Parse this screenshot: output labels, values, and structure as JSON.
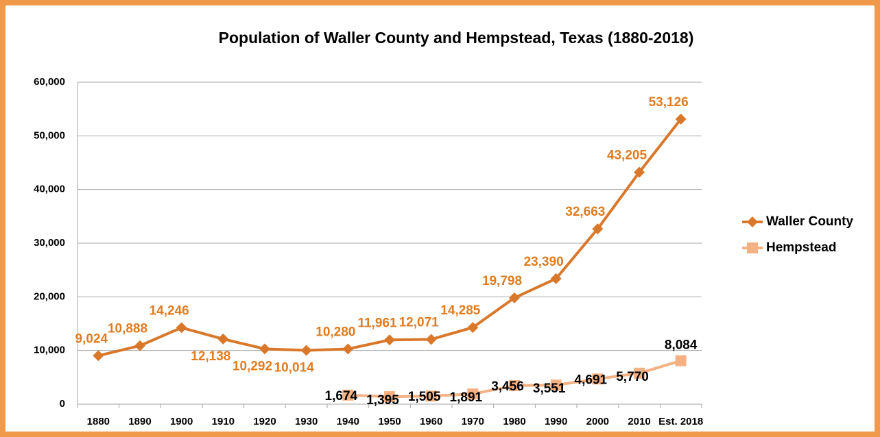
{
  "chart_data": {
    "type": "line",
    "title": "Population of Waller County and Hempstead, Texas (1880-2018)",
    "categories": [
      "1880",
      "1890",
      "1900",
      "1910",
      "1920",
      "1930",
      "1940",
      "1950",
      "1960",
      "1970",
      "1980",
      "1990",
      "2000",
      "2010",
      "Est. 2018"
    ],
    "series": [
      {
        "name": "Waller County",
        "color": "#d9782b",
        "label_color": "#e07b20",
        "marker": "diamond",
        "values": [
          9024,
          10888,
          14246,
          12138,
          10292,
          10014,
          10280,
          11961,
          12071,
          14285,
          19798,
          23390,
          32663,
          43205,
          53126
        ],
        "value_labels": [
          "9,024",
          "10,888",
          "14,246",
          "12,138",
          "10,292",
          "10,014",
          "10,280",
          "11,961",
          "12,071",
          "14,285",
          "19,798",
          "23,390",
          "32,663",
          "43,205",
          "53,126"
        ]
      },
      {
        "name": "Hempstead",
        "color": "#f4b183",
        "label_color": "#000000",
        "marker": "square",
        "values": [
          null,
          null,
          null,
          null,
          null,
          null,
          1674,
          1395,
          1505,
          1891,
          3456,
          3551,
          4691,
          5770,
          8084
        ],
        "value_labels": [
          null,
          null,
          null,
          null,
          null,
          null,
          "1,674",
          "1,395",
          "1,505",
          "1,891",
          "3,456",
          "3,551",
          "4,691",
          "5,770",
          "8,084"
        ]
      }
    ],
    "ylim": [
      0,
      60000
    ],
    "yticks": [
      0,
      {
        "value": 10000,
        "label": "10,000"
      },
      {
        "value": 20000,
        "label": "20,000"
      },
      {
        "value": 30000,
        "label": "30,000"
      },
      {
        "value": 40000,
        "label": "40,000"
      },
      {
        "value": 50000,
        "label": "50,000"
      },
      {
        "value": 60000,
        "label": "60,000"
      }
    ],
    "grid": true,
    "legend": "right"
  }
}
